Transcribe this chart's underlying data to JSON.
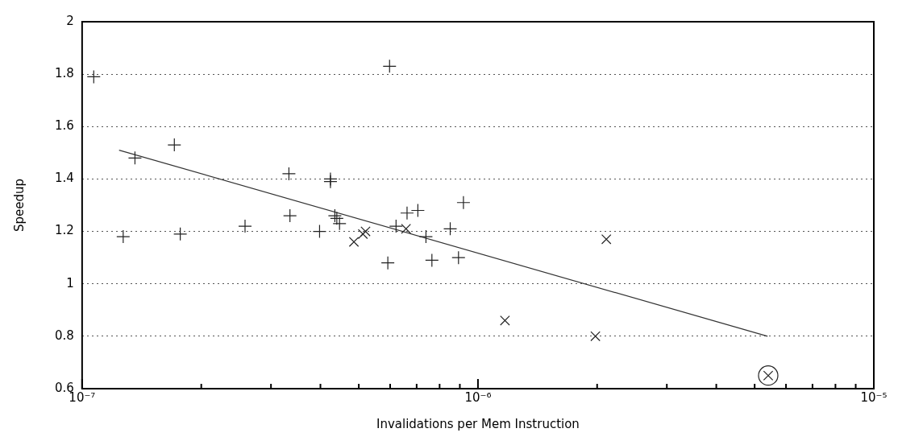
{
  "chart_data": {
    "type": "scatter",
    "xlabel": "Invalidations per Mem Instruction",
    "ylabel": "Speedup",
    "log": "x",
    "grid": "y",
    "legend": false,
    "xlim": [
      1e-07,
      1e-05
    ],
    "ylim": [
      0.6,
      2
    ],
    "xticks": [
      {
        "value": 1e-07,
        "label": "10⁻⁷"
      },
      {
        "value": 2e-07,
        "label": null
      },
      {
        "value": 3e-07,
        "label": null
      },
      {
        "value": 4e-07,
        "label": null
      },
      {
        "value": 5e-07,
        "label": null
      },
      {
        "value": 6e-07,
        "label": null
      },
      {
        "value": 7e-07,
        "label": null
      },
      {
        "value": 8e-07,
        "label": null
      },
      {
        "value": 9e-07,
        "label": null
      },
      {
        "value": 1e-06,
        "label": "10⁻⁶"
      },
      {
        "value": 2e-06,
        "label": null
      },
      {
        "value": 3e-06,
        "label": null
      },
      {
        "value": 4e-06,
        "label": null
      },
      {
        "value": 5e-06,
        "label": null
      },
      {
        "value": 6e-06,
        "label": null
      },
      {
        "value": 7e-06,
        "label": null
      },
      {
        "value": 8e-06,
        "label": null
      },
      {
        "value": 9e-06,
        "label": null
      },
      {
        "value": 1e-05,
        "label": "10⁻⁵"
      }
    ],
    "yticks": [
      0.6,
      0.8,
      1,
      1.2,
      1.4,
      1.6,
      1.8,
      2
    ],
    "series": [
      {
        "marker": "plus",
        "color": "#222222",
        "x": [
          1.07e-07,
          1.36e-07,
          1.27e-07,
          1.71e-07,
          1.77e-07,
          2.58e-07,
          3.33e-07,
          3.35e-07,
          3.98e-07,
          4.24e-07,
          4.24e-07,
          4.35e-07,
          4.4e-07,
          4.47e-07,
          5.92e-07,
          5.98e-07,
          6.21e-07,
          6.62e-07,
          7.05e-07,
          7.39e-07,
          7.65e-07,
          8.51e-07,
          8.93e-07,
          9.19e-07
        ],
        "values": [
          1.79,
          1.48,
          1.18,
          1.53,
          1.19,
          1.22,
          1.42,
          1.26,
          1.2,
          1.39,
          1.4,
          1.26,
          1.25,
          1.23,
          1.08,
          1.83,
          1.22,
          1.27,
          1.28,
          1.18,
          1.09,
          1.21,
          1.1,
          1.31
        ]
      },
      {
        "marker": "cross",
        "color": "#222222",
        "x": [
          4.86e-07,
          5.12e-07,
          5.2e-07,
          6.58e-07,
          1.17e-06,
          2.11e-06,
          1.98e-06,
          5.41e-06
        ],
        "values": [
          1.16,
          1.19,
          1.2,
          1.21,
          0.86,
          1.17,
          0.8,
          0.65
        ]
      },
      {
        "color": "#222222",
        "x": [
          5.41e-06
        ],
        "values": [
          0.65
        ]
      },
      {
        "type": "line",
        "marker": "none",
        "color": "#333333",
        "x": [
          1.24e-07,
          5.39e-06
        ],
        "values": [
          1.51,
          0.8
        ]
      }
    ]
  }
}
